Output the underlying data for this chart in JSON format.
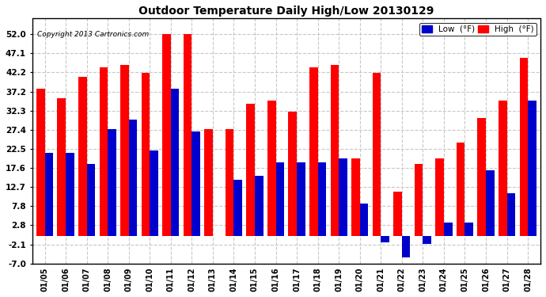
{
  "title": "Outdoor Temperature Daily High/Low 20130129",
  "copyright": "Copyright 2013 Cartronics.com",
  "dates": [
    "01/05",
    "01/06",
    "01/07",
    "01/08",
    "01/09",
    "01/10",
    "01/11",
    "01/12",
    "01/13",
    "01/14",
    "01/15",
    "01/16",
    "01/17",
    "01/18",
    "01/19",
    "01/20",
    "01/21",
    "01/22",
    "01/23",
    "01/24",
    "01/25",
    "01/26",
    "01/27",
    "01/28"
  ],
  "highs": [
    38.0,
    35.5,
    41.0,
    43.5,
    44.0,
    42.0,
    52.0,
    52.0,
    27.5,
    27.5,
    34.0,
    35.0,
    32.0,
    43.5,
    44.0,
    20.0,
    42.0,
    11.5,
    18.5,
    20.0,
    24.0,
    30.5,
    35.0,
    46.0
  ],
  "lows": [
    21.5,
    21.5,
    18.5,
    27.5,
    30.0,
    22.0,
    38.0,
    27.0,
    0.0,
    14.5,
    15.5,
    19.0,
    19.0,
    19.0,
    20.0,
    8.5,
    -1.5,
    -5.5,
    -2.0,
    3.5,
    3.5,
    17.0,
    11.0,
    35.0
  ],
  "high_color": "#ff0000",
  "low_color": "#0000cc",
  "bg_color": "#ffffff",
  "grid_color": "#c8c8c8",
  "ylim_min": -7.0,
  "ylim_max": 56.0,
  "yticks": [
    -7.0,
    -2.1,
    2.8,
    7.8,
    12.7,
    17.6,
    22.5,
    27.4,
    32.3,
    37.2,
    42.2,
    47.1,
    52.0
  ]
}
